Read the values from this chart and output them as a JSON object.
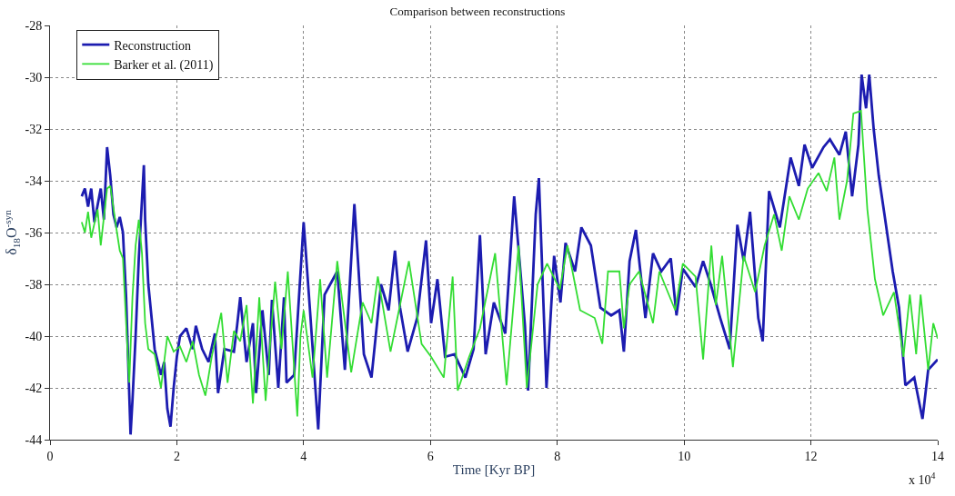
{
  "chart_data": {
    "type": "line",
    "title": "Comparison between reconstructions",
    "xlabel": "Time [Kyr BP]",
    "ylabel": "δ$_{18}$O$^{-syn}$",
    "annotations": [
      "x 10$^{4}$"
    ],
    "xlim": [
      0,
      14
    ],
    "ylim": [
      -44,
      -28
    ],
    "xticks": [
      0,
      2,
      4,
      6,
      8,
      10,
      12,
      14
    ],
    "yticks": [
      -44,
      -42,
      -40,
      -38,
      -36,
      -34,
      -32,
      -30,
      -28
    ],
    "grid": true,
    "legend": "top left",
    "line_style": "solid",
    "marker": "none",
    "series": [
      {
        "name": "Reconstruction",
        "color": "#1c1cb0",
        "x": [
          0.5,
          0.55,
          0.6,
          0.65,
          0.7,
          0.8,
          0.85,
          0.9,
          0.95,
          1.0,
          1.05,
          1.1,
          1.15,
          1.2,
          1.27,
          1.3,
          1.35,
          1.4,
          1.48,
          1.5,
          1.55,
          1.65,
          1.75,
          1.8,
          1.85,
          1.9,
          1.95,
          2.0,
          2.05,
          2.15,
          2.25,
          2.3,
          2.4,
          2.5,
          2.6,
          2.65,
          2.75,
          2.9,
          2.95,
          3.0,
          3.1,
          3.2,
          3.25,
          3.35,
          3.45,
          3.5,
          3.6,
          3.69,
          3.73,
          3.85,
          4.0,
          4.1,
          4.23,
          4.33,
          4.53,
          4.65,
          4.8,
          4.95,
          5.07,
          5.22,
          5.34,
          5.44,
          5.52,
          5.64,
          5.79,
          5.93,
          6.01,
          6.11,
          6.23,
          6.38,
          6.55,
          6.68,
          6.78,
          6.87,
          7.0,
          7.18,
          7.32,
          7.49,
          7.54,
          7.66,
          7.71,
          7.83,
          7.95,
          8.05,
          8.13,
          8.28,
          8.38,
          8.53,
          8.68,
          8.85,
          8.98,
          9.05,
          9.14,
          9.24,
          9.39,
          9.51,
          9.64,
          9.79,
          9.88,
          9.98,
          10.18,
          10.3,
          10.42,
          10.57,
          10.72,
          10.84,
          10.94,
          11.04,
          11.17,
          11.24,
          11.34,
          11.51,
          11.68,
          11.81,
          11.9,
          12.02,
          12.2,
          12.3,
          12.45,
          12.55,
          12.65,
          12.75,
          12.8,
          12.87,
          12.92,
          12.99,
          13.07,
          13.16,
          13.29,
          13.39,
          13.49,
          13.63,
          13.76,
          13.85,
          14.0
        ],
        "values": [
          -34.6,
          -34.3,
          -35.0,
          -34.3,
          -35.6,
          -34.3,
          -35.5,
          -32.7,
          -33.8,
          -35.3,
          -35.8,
          -35.4,
          -36.0,
          -38.5,
          -43.8,
          -42.5,
          -40.0,
          -37.0,
          -33.4,
          -35.5,
          -38.0,
          -40.5,
          -41.5,
          -41.0,
          -42.8,
          -43.5,
          -42.0,
          -40.8,
          -40.0,
          -39.7,
          -40.5,
          -39.6,
          -40.5,
          -41.0,
          -39.9,
          -42.2,
          -40.5,
          -40.6,
          -39.6,
          -38.5,
          -41.0,
          -39.5,
          -42.2,
          -39.0,
          -41.5,
          -38.6,
          -42.0,
          -38.5,
          -41.8,
          -41.5,
          -35.6,
          -39.0,
          -43.6,
          -38.4,
          -37.5,
          -41.3,
          -34.9,
          -40.7,
          -41.6,
          -38.0,
          -39.0,
          -36.7,
          -38.9,
          -40.6,
          -39.3,
          -36.3,
          -39.5,
          -37.8,
          -40.8,
          -40.7,
          -41.6,
          -40.5,
          -36.1,
          -40.7,
          -38.7,
          -39.9,
          -34.6,
          -39.6,
          -42.1,
          -35.3,
          -33.9,
          -42.0,
          -36.9,
          -38.7,
          -36.4,
          -37.5,
          -35.8,
          -36.5,
          -38.9,
          -39.2,
          -39.0,
          -40.6,
          -37.1,
          -35.9,
          -39.3,
          -36.8,
          -37.5,
          -37.0,
          -39.2,
          -37.4,
          -38.1,
          -37.1,
          -38.0,
          -39.3,
          -40.5,
          -35.7,
          -37.1,
          -35.2,
          -39.3,
          -40.2,
          -34.4,
          -35.8,
          -33.1,
          -34.2,
          -32.6,
          -33.5,
          -32.7,
          -32.4,
          -33.0,
          -32.1,
          -34.6,
          -32.6,
          -29.9,
          -31.2,
          -29.9,
          -32.0,
          -33.8,
          -35.3,
          -37.5,
          -38.9,
          -41.9,
          -41.6,
          -43.2,
          -41.3,
          -40.9
        ]
      },
      {
        "name": "Barker et al. (2011)",
        "color": "#33dd33",
        "x": [
          0.5,
          0.55,
          0.6,
          0.65,
          0.75,
          0.8,
          0.9,
          0.95,
          1.05,
          1.1,
          1.15,
          1.2,
          1.25,
          1.3,
          1.35,
          1.4,
          1.45,
          1.5,
          1.55,
          1.65,
          1.75,
          1.85,
          1.95,
          2.05,
          2.15,
          2.25,
          2.35,
          2.45,
          2.55,
          2.7,
          2.8,
          2.9,
          3.0,
          3.1,
          3.2,
          3.3,
          3.4,
          3.55,
          3.65,
          3.75,
          3.9,
          3.95,
          4.0,
          4.14,
          4.26,
          4.37,
          4.53,
          4.75,
          4.93,
          5.07,
          5.17,
          5.37,
          5.52,
          5.66,
          5.86,
          6.01,
          6.21,
          6.35,
          6.43,
          6.61,
          6.78,
          7.02,
          7.2,
          7.39,
          7.52,
          7.69,
          7.84,
          8.04,
          8.16,
          8.36,
          8.59,
          8.71,
          8.8,
          8.98,
          9.05,
          9.14,
          9.29,
          9.51,
          9.61,
          9.86,
          9.98,
          10.18,
          10.3,
          10.43,
          10.5,
          10.6,
          10.77,
          10.94,
          11.12,
          11.27,
          11.42,
          11.54,
          11.66,
          11.81,
          11.95,
          12.12,
          12.25,
          12.37,
          12.45,
          12.57,
          12.67,
          12.79,
          12.89,
          13.01,
          13.14,
          13.31,
          13.46,
          13.56,
          13.66,
          13.73,
          13.85,
          13.93,
          14.0
        ],
        "values": [
          -35.6,
          -36.0,
          -35.2,
          -36.2,
          -35.1,
          -36.5,
          -34.3,
          -34.2,
          -35.9,
          -36.7,
          -37.0,
          -39.5,
          -41.8,
          -38.5,
          -36.5,
          -35.5,
          -36.8,
          -39.5,
          -40.5,
          -40.7,
          -42.0,
          -40.0,
          -40.6,
          -40.4,
          -41.0,
          -40.2,
          -41.5,
          -42.3,
          -40.8,
          -39.1,
          -41.8,
          -39.8,
          -40.2,
          -38.8,
          -42.6,
          -38.5,
          -42.5,
          -37.9,
          -40.5,
          -37.5,
          -43.1,
          -40.0,
          -39.0,
          -41.6,
          -37.8,
          -41.6,
          -37.1,
          -41.4,
          -38.7,
          -39.5,
          -37.7,
          -40.6,
          -38.8,
          -37.1,
          -40.3,
          -40.8,
          -41.6,
          -37.7,
          -42.1,
          -40.8,
          -39.7,
          -36.8,
          -41.9,
          -36.5,
          -42.0,
          -38.0,
          -37.2,
          -38.2,
          -36.5,
          -39.0,
          -39.3,
          -40.3,
          -37.5,
          -37.5,
          -39.7,
          -38.0,
          -37.5,
          -39.5,
          -37.5,
          -39.0,
          -37.2,
          -37.7,
          -40.9,
          -36.5,
          -38.8,
          -36.9,
          -41.2,
          -36.9,
          -38.3,
          -36.5,
          -35.3,
          -36.7,
          -34.6,
          -35.5,
          -34.3,
          -33.7,
          -34.4,
          -33.1,
          -35.5,
          -34.0,
          -31.4,
          -31.3,
          -35.1,
          -37.8,
          -39.2,
          -38.3,
          -40.8,
          -38.4,
          -40.7,
          -38.4,
          -41.3,
          -39.5,
          -40.1
        ]
      }
    ]
  }
}
